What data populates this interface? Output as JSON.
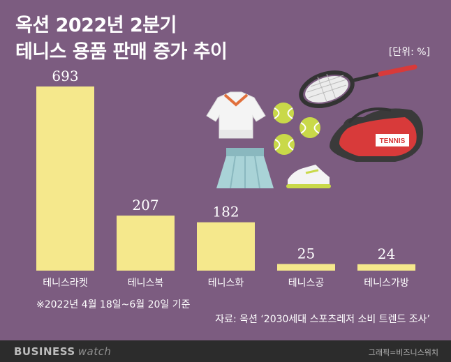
{
  "header": {
    "title_line1": "옥션 2022년 2분기",
    "title_line2": "테니스 용품 판매 증가 추이",
    "unit": "[단위: %]"
  },
  "chart_data": {
    "type": "bar",
    "title": "옥션 2022년 2분기 테니스 용품 판매 증가 추이",
    "categories": [
      "테니스라켓",
      "테니스복",
      "테니스화",
      "테니스공",
      "테니스가방"
    ],
    "values": [
      693,
      207,
      182,
      25,
      24
    ],
    "value_labels": [
      "693",
      "207",
      "182",
      "25",
      "24"
    ],
    "unit": "%",
    "ylim": [
      0,
      693
    ],
    "grid": false,
    "bar_color": "#f5e88c"
  },
  "notes": {
    "period": "※2022년 4월 18일~6월 20일 기준",
    "source": "자료: 옥션 ‘2030세대 스포츠레저 소비 트렌드 조사’"
  },
  "footer": {
    "brand_main": "BUSINESS",
    "brand_sub": "watch",
    "credit": "그래픽=비즈니스워치"
  },
  "illustration": {
    "bag_text": "TENNIS",
    "icons": [
      "tennis-shirt-icon",
      "tennis-skirt-icon",
      "tennis-ball-icon",
      "tennis-racket-icon",
      "tennis-bag-icon",
      "tennis-shoe-icon"
    ]
  }
}
